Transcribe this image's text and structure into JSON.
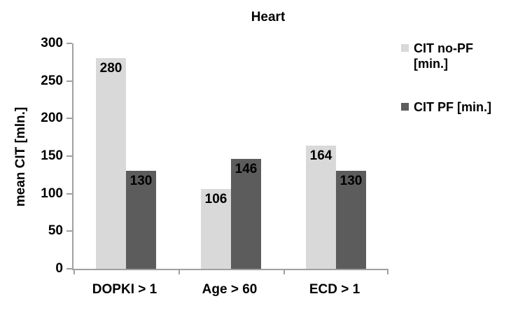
{
  "title": "Heart",
  "y_axis": {
    "label": "mean CIT [mln.]",
    "ticks": [
      0,
      50,
      100,
      150,
      200,
      250,
      300
    ]
  },
  "legend": [
    {
      "lines": [
        "CIT no-PF",
        "[min.]"
      ],
      "color": "#d9d9d9"
    },
    {
      "lines": [
        "CIT PF [min.]"
      ],
      "color": "#5c5c5c"
    }
  ],
  "chart_data": {
    "type": "bar",
    "title": "Heart",
    "categories": [
      "DOPKI > 1",
      "Age > 60",
      "ECD > 1"
    ],
    "series": [
      {
        "name": "CIT no-PF [min.]",
        "color": "#d9d9d9",
        "values": [
          280,
          106,
          164
        ]
      },
      {
        "name": "CIT PF [min.]",
        "color": "#5c5c5c",
        "values": [
          130,
          146,
          130
        ]
      }
    ],
    "xlabel": "",
    "ylabel": "mean CIT [mln.]",
    "ylim": [
      0,
      300
    ],
    "ytick_step": 50,
    "grid": false,
    "legend_position": "right",
    "bar_value_labels": "inside-top"
  }
}
